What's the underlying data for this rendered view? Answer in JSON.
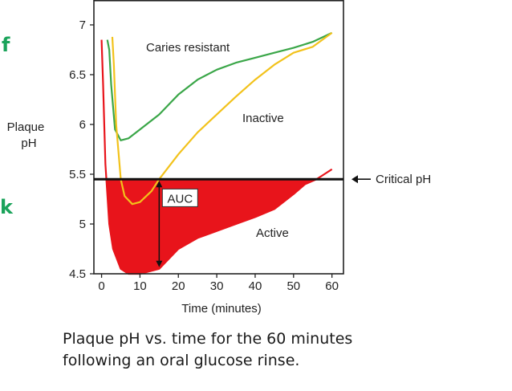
{
  "chart_data": {
    "type": "line",
    "title": "",
    "xlabel": "Time (minutes)",
    "ylabel": "Plaque pH",
    "xlim": [
      -2,
      63
    ],
    "ylim": [
      4.5,
      7.25
    ],
    "x_ticks": [
      0,
      10,
      20,
      30,
      40,
      50,
      60
    ],
    "y_ticks": [
      4.5,
      5,
      5.5,
      6,
      6.5,
      7
    ],
    "y_tick_labels": [
      "4.5",
      "5",
      "5.5",
      "6",
      "6.5",
      "7"
    ],
    "grid": false,
    "legend": "none",
    "critical_ph": 5.45,
    "series": [
      {
        "name": "Caries resistant",
        "color": "#3aa648",
        "x": [
          1.5,
          2.0,
          2.5,
          3.5,
          5,
          7,
          10,
          15,
          20,
          25,
          30,
          35,
          40,
          45,
          50,
          55,
          60
        ],
        "y": [
          6.85,
          6.75,
          6.4,
          5.95,
          5.84,
          5.86,
          5.95,
          6.1,
          6.3,
          6.45,
          6.55,
          6.62,
          6.67,
          6.72,
          6.77,
          6.83,
          6.92
        ]
      },
      {
        "name": "Inactive",
        "color": "#f2c21b",
        "x": [
          2.8,
          3.2,
          3.8,
          5,
          6,
          8,
          10,
          13,
          15,
          20,
          25,
          30,
          35,
          40,
          45,
          50,
          55,
          60
        ],
        "y": [
          6.88,
          6.6,
          6.0,
          5.45,
          5.28,
          5.2,
          5.22,
          5.33,
          5.45,
          5.7,
          5.92,
          6.1,
          6.28,
          6.45,
          6.6,
          6.72,
          6.78,
          6.92
        ]
      },
      {
        "name": "Active",
        "color": "#e8141b",
        "x": [
          0,
          0.4,
          1.0,
          2,
          3,
          5,
          7,
          10,
          15,
          20,
          25,
          30,
          35,
          40,
          45,
          50,
          53,
          56,
          58,
          60
        ],
        "y": [
          6.85,
          6.4,
          5.6,
          5.0,
          4.75,
          4.55,
          4.5,
          4.5,
          4.55,
          4.75,
          4.86,
          4.93,
          5.0,
          5.07,
          5.15,
          5.3,
          5.4,
          5.45,
          5.5,
          5.55
        ]
      }
    ],
    "annotations": {
      "critical_label": "Critical pH",
      "auc_label": "AUC",
      "auc_x": 15,
      "auc_range": [
        4.55,
        5.45
      ],
      "caries_resistant_label": "Caries resistant",
      "inactive_label": "Inactive",
      "active_label": "Active"
    }
  },
  "caption_line1": "Plaque pH vs. time for the 60 minutes",
  "caption_line2": "following an oral glucose rinse.",
  "edge_glyphs": [
    "f",
    "k"
  ]
}
